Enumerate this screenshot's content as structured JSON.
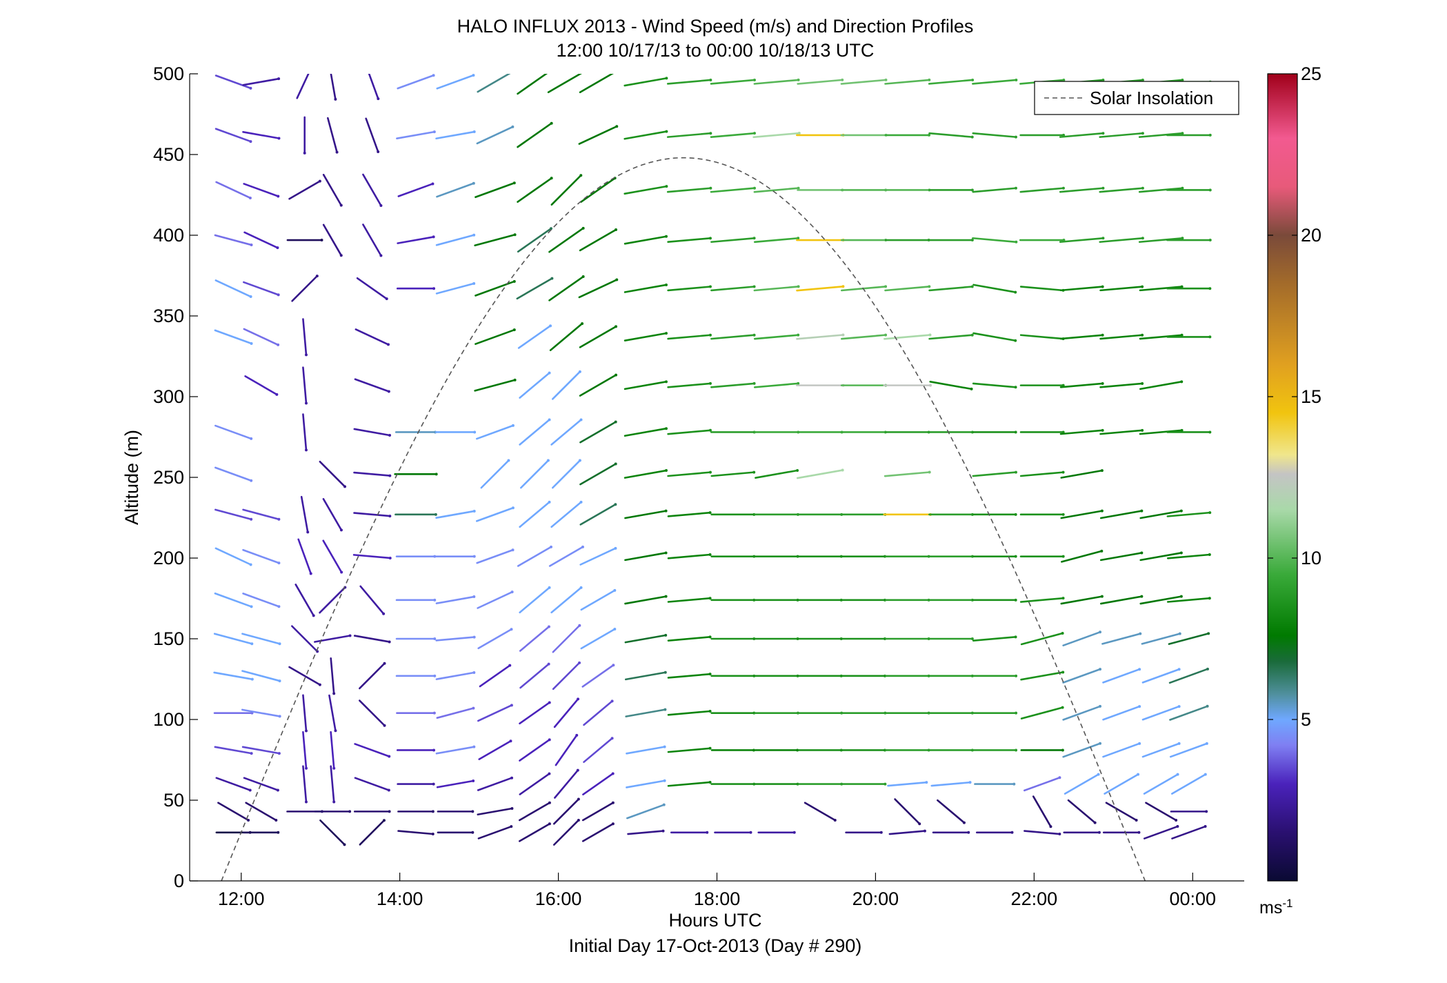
{
  "chart_data": {
    "type": "wind-barb-profile",
    "title": "HALO INFLUX 2013 - Wind Speed (m/s) and Direction Profiles",
    "subtitle": "12:00 10/17/13 to 00:00 10/18/13  UTC",
    "xlabel": "Hours UTC",
    "xlabel2": "Initial Day 17-Oct-2013 (Day # 290)",
    "ylabel": "Altitude (m)",
    "x_ticks": [
      "12:00",
      "14:00",
      "16:00",
      "18:00",
      "20:00",
      "22:00",
      "00:00"
    ],
    "x_tick_hours": [
      12,
      14,
      16,
      18,
      20,
      22,
      24
    ],
    "xlim": [
      11.35,
      24.65
    ],
    "ylim": [
      0,
      500
    ],
    "y_ticks": [
      0,
      50,
      100,
      150,
      200,
      250,
      300,
      350,
      400,
      450,
      500
    ],
    "legend": {
      "label": "Solar Insolation",
      "position": "top-right"
    },
    "colorbar": {
      "label": "ms",
      "label_exp": "-1",
      "range": [
        0,
        25
      ],
      "ticks": [
        5,
        10,
        15,
        20,
        25
      ],
      "stops": [
        {
          "v": 0,
          "c": "#0a0a33"
        },
        {
          "v": 1.5,
          "c": "#2a1070"
        },
        {
          "v": 3,
          "c": "#4a22bb"
        },
        {
          "v": 4.2,
          "c": "#7f7ff2"
        },
        {
          "v": 5,
          "c": "#6fa8ff"
        },
        {
          "v": 5.8,
          "c": "#4f8f9c"
        },
        {
          "v": 6.8,
          "c": "#1a6b3a"
        },
        {
          "v": 7.6,
          "c": "#007a00"
        },
        {
          "v": 9.5,
          "c": "#3aaa3a"
        },
        {
          "v": 11.5,
          "c": "#a9d9a9"
        },
        {
          "v": 12.6,
          "c": "#c4c4c4"
        },
        {
          "v": 13.2,
          "c": "#f0e68c"
        },
        {
          "v": 14.5,
          "c": "#f1c40f"
        },
        {
          "v": 16,
          "c": "#e0a020"
        },
        {
          "v": 18.5,
          "c": "#a36b2a"
        },
        {
          "v": 20,
          "c": "#7a4a3a"
        },
        {
          "v": 21.5,
          "c": "#e85a7a"
        },
        {
          "v": 23,
          "c": "#f25a90"
        },
        {
          "v": 25,
          "c": "#a0001a"
        }
      ]
    },
    "solar_insolation": {
      "start_hour": 11.75,
      "peak_hour": 17.58,
      "end_hour": 23.4,
      "peak_value_axis_units": 448
    },
    "profile_heights_m": [
      30,
      43,
      60,
      81,
      104,
      127,
      150,
      174,
      201,
      227,
      252,
      278,
      307,
      337,
      367,
      397,
      428,
      462,
      495
    ],
    "profiles": [
      {
        "t": 11.9,
        "s": [
          0.5,
          1.5,
          2.5,
          3.5,
          4.0,
          5.0,
          5.0,
          5.0,
          5.0,
          3.5,
          4.5,
          4.5,
          null,
          5.0,
          5.0,
          4.0,
          4.0,
          3.5,
          3.5
        ],
        "d": [
          90,
          120,
          110,
          100,
          90,
          100,
          105,
          110,
          115,
          105,
          110,
          110,
          null,
          110,
          115,
          105,
          115,
          110,
          110
        ]
      },
      {
        "t": 12.25,
        "s": [
          1,
          1.5,
          2.5,
          3.5,
          4.5,
          5.0,
          5.0,
          4.5,
          4.5,
          3.5,
          null,
          null,
          3.0,
          4.0,
          3.5,
          3.0,
          3.0,
          3.0,
          2.5
        ],
        "d": [
          90,
          120,
          110,
          100,
          100,
          105,
          105,
          110,
          110,
          105,
          null,
          null,
          120,
          115,
          110,
          115,
          110,
          100,
          80
        ]
      },
      {
        "t": 12.8,
        "s": [
          null,
          1.5,
          2.5,
          3.0,
          2.5,
          2.0,
          2.5,
          2.5,
          3.0,
          2.5,
          null,
          2.5,
          2.5,
          2.5,
          2.0,
          1.0,
          2.0,
          2.5,
          2.5
        ],
        "d": [
          null,
          90,
          175,
          175,
          175,
          120,
          135,
          150,
          160,
          170,
          null,
          175,
          175,
          175,
          45,
          90,
          60,
          180,
          25
        ]
      },
      {
        "t": 13.15,
        "s": [
          1,
          1.5,
          2.5,
          3.0,
          2.5,
          2.0,
          2.5,
          2.5,
          3.0,
          2.5,
          2.0,
          null,
          null,
          null,
          null,
          2.0,
          2.0,
          2.0,
          2.0
        ],
        "d": [
          135,
          90,
          175,
          175,
          170,
          175,
          80,
          45,
          150,
          150,
          135,
          null,
          null,
          null,
          null,
          150,
          150,
          165,
          170
        ]
      },
      {
        "t": 13.65,
        "s": [
          1,
          1.5,
          2.5,
          3.0,
          2.0,
          2.0,
          2.0,
          2.5,
          3.0,
          2.5,
          2.5,
          2.5,
          2.5,
          2.5,
          2.5,
          2.5,
          2.5,
          2.0,
          2.5
        ],
        "d": [
          45,
          90,
          110,
          110,
          135,
          45,
          100,
          140,
          95,
          95,
          95,
          100,
          110,
          115,
          125,
          150,
          150,
          160,
          160
        ]
      },
      {
        "t": 14.2,
        "s": [
          1.5,
          1.5,
          2.5,
          3.0,
          4.0,
          4.5,
          4.5,
          4.5,
          4.5,
          6.5,
          7.5,
          5.5,
          null,
          null,
          3.0,
          3.0,
          3.0,
          4.5,
          4.5
        ],
        "d": [
          95,
          90,
          90,
          90,
          90,
          90,
          90,
          90,
          90,
          90,
          90,
          90,
          null,
          null,
          90,
          80,
          70,
          80,
          70
        ]
      },
      {
        "t": 14.7,
        "s": [
          1.5,
          1.5,
          3.0,
          4.5,
          4.0,
          4.5,
          4.5,
          4.5,
          4.5,
          5.0,
          null,
          5.0,
          null,
          null,
          5.0,
          5.0,
          5.5,
          5.0,
          5.0
        ],
        "d": [
          90,
          90,
          80,
          80,
          75,
          80,
          85,
          80,
          90,
          80,
          null,
          90,
          null,
          null,
          75,
          75,
          70,
          80,
          70
        ]
      },
      {
        "t": 15.2,
        "s": [
          1.5,
          1.5,
          2.5,
          3.0,
          3.5,
          3.0,
          4.5,
          4.5,
          4.5,
          5.0,
          5.0,
          5.0,
          7.5,
          7.5,
          7.5,
          7.5,
          7.5,
          5.5,
          6.0
        ],
        "d": [
          70,
          80,
          70,
          60,
          65,
          55,
          60,
          65,
          70,
          70,
          45,
          70,
          75,
          70,
          70,
          75,
          70,
          65,
          60
        ]
      },
      {
        "t": 15.7,
        "s": [
          1.5,
          1.5,
          2.5,
          3.0,
          3.0,
          3.5,
          4.0,
          5.0,
          4.5,
          5.0,
          5.0,
          5.0,
          5.0,
          5.0,
          6.5,
          6.5,
          7.5,
          7.5,
          7.5
        ],
        "d": [
          60,
          60,
          55,
          55,
          55,
          50,
          50,
          50,
          60,
          50,
          45,
          50,
          50,
          55,
          60,
          55,
          55,
          55,
          55
        ]
      },
      {
        "t": 16.1,
        "s": [
          1.5,
          1.5,
          2.5,
          3.0,
          3.0,
          3.5,
          4.0,
          5.0,
          4.5,
          5.0,
          5.0,
          5.0,
          5.0,
          7.5,
          7.5,
          7.5,
          7.5,
          null,
          7.5
        ],
        "d": [
          45,
          45,
          40,
          35,
          40,
          45,
          45,
          50,
          60,
          50,
          45,
          50,
          45,
          50,
          55,
          55,
          45,
          null,
          60
        ]
      },
      {
        "t": 16.5,
        "s": [
          1.5,
          1.5,
          3.0,
          3.5,
          3.5,
          4.0,
          5.0,
          5.0,
          5.0,
          6.5,
          7.0,
          7.0,
          7.5,
          7.5,
          7.5,
          7.5,
          7.5,
          7.5,
          7.5
        ],
        "d": [
          60,
          60,
          55,
          50,
          50,
          55,
          60,
          60,
          65,
          60,
          60,
          60,
          60,
          60,
          65,
          60,
          55,
          65,
          60
        ]
      },
      {
        "t": 17.1,
        "s": [
          2.0,
          5.5,
          5.0,
          5.0,
          6.0,
          6.5,
          7.0,
          7.5,
          7.5,
          7.5,
          8.0,
          8.0,
          8.0,
          8.0,
          8.0,
          8.0,
          8.5,
          8.5,
          8.5
        ],
        "d": [
          85,
          70,
          80,
          80,
          80,
          80,
          80,
          80,
          80,
          80,
          80,
          80,
          80,
          80,
          80,
          80,
          80,
          80,
          80
        ]
      },
      {
        "t": 17.65,
        "s": [
          2.5,
          null,
          8.0,
          8.0,
          8.0,
          8.0,
          8.0,
          8.0,
          8.0,
          8.0,
          8.5,
          8.5,
          8.5,
          8.5,
          8.5,
          8.5,
          9.0,
          9.0,
          9.0
        ],
        "d": [
          90,
          null,
          85,
          85,
          85,
          85,
          85,
          85,
          85,
          85,
          85,
          85,
          85,
          85,
          85,
          85,
          85,
          85,
          85
        ]
      },
      {
        "t": 18.2,
        "s": [
          2.5,
          null,
          8.5,
          8.0,
          8.5,
          8.5,
          8.5,
          8.5,
          8.5,
          8.5,
          8.5,
          9.0,
          9.0,
          9.0,
          9.0,
          9.0,
          9.5,
          9.5,
          9.5
        ],
        "d": [
          90,
          null,
          90,
          90,
          90,
          90,
          90,
          90,
          90,
          90,
          85,
          90,
          85,
          85,
          85,
          85,
          85,
          85,
          85
        ]
      },
      {
        "t": 18.75,
        "s": [
          2.5,
          null,
          8.5,
          8.0,
          9.0,
          8.5,
          8.5,
          8.5,
          8.5,
          9.0,
          8.5,
          9.5,
          9.5,
          9.5,
          10.0,
          9.5,
          10.0,
          11.5,
          10.0
        ],
        "d": [
          90,
          null,
          90,
          90,
          90,
          90,
          90,
          90,
          90,
          90,
          80,
          90,
          85,
          85,
          85,
          85,
          85,
          85,
          85
        ]
      },
      {
        "t": 19.3,
        "s": [
          null,
          1.5,
          9.0,
          8.5,
          9.0,
          8.5,
          8.5,
          8.5,
          8.5,
          9.0,
          11.5,
          9.5,
          12.5,
          12.0,
          14.5,
          14.5,
          10.5,
          14.5,
          10.5
        ],
        "d": [
          null,
          120,
          90,
          90,
          90,
          90,
          90,
          90,
          90,
          90,
          80,
          90,
          90,
          85,
          85,
          90,
          90,
          90,
          85
        ]
      },
      {
        "t": 19.85,
        "s": [
          2.0,
          null,
          9.0,
          8.5,
          9.0,
          8.5,
          8.5,
          8.5,
          8.5,
          9.0,
          null,
          9.5,
          10.0,
          10.0,
          10.0,
          10.0,
          10.0,
          10.5,
          10.5
        ],
        "d": [
          90,
          null,
          90,
          90,
          90,
          90,
          90,
          90,
          90,
          90,
          null,
          90,
          90,
          85,
          85,
          90,
          90,
          90,
          85
        ]
      },
      {
        "t": 20.4,
        "s": [
          2.0,
          1.5,
          5.0,
          9.0,
          9.0,
          9.0,
          9.0,
          9.0,
          9.0,
          14.5,
          10.5,
          9.0,
          12.5,
          11.5,
          10.0,
          9.0,
          10.0,
          9.5,
          10.0
        ],
        "d": [
          85,
          135,
          85,
          90,
          90,
          90,
          90,
          90,
          90,
          90,
          85,
          90,
          90,
          85,
          85,
          90,
          90,
          90,
          85
        ]
      },
      {
        "t": 20.95,
        "s": [
          2.0,
          1.5,
          5.0,
          9.0,
          9.0,
          9.0,
          9.0,
          9.0,
          9.0,
          9.0,
          null,
          9.0,
          8.0,
          9.0,
          9.0,
          9.0,
          9.0,
          9.0,
          9.5
        ],
        "d": [
          90,
          130,
          85,
          90,
          90,
          90,
          90,
          90,
          90,
          90,
          null,
          90,
          100,
          85,
          85,
          90,
          90,
          95,
          85
        ]
      },
      {
        "t": 21.5,
        "s": [
          2.0,
          null,
          5.5,
          9.0,
          9.0,
          9.0,
          8.5,
          8.5,
          8.5,
          8.5,
          9.0,
          8.5,
          8.5,
          8.5,
          8.5,
          9.5,
          9.0,
          9.0,
          9.5
        ],
        "d": [
          90,
          null,
          90,
          90,
          90,
          90,
          85,
          90,
          90,
          90,
          85,
          90,
          95,
          100,
          100,
          95,
          85,
          95,
          85
        ]
      },
      {
        "t": 22.1,
        "s": [
          2.0,
          1.5,
          4.0,
          7.5,
          8.5,
          8.5,
          8.5,
          8.5,
          8.5,
          8.5,
          8.5,
          8.5,
          8.5,
          8.5,
          8.5,
          9.5,
          9.0,
          9.0,
          9.5
        ],
        "d": [
          95,
          150,
          70,
          90,
          75,
          80,
          75,
          85,
          90,
          90,
          85,
          90,
          90,
          95,
          95,
          90,
          85,
          90,
          85
        ]
      },
      {
        "t": 22.6,
        "s": [
          2.0,
          1.5,
          5.0,
          5.5,
          5.5,
          5.5,
          5.5,
          7.5,
          7.5,
          7.5,
          7.5,
          8.0,
          8.0,
          8.0,
          8.0,
          9.0,
          9.0,
          9.0,
          9.0
        ],
        "d": [
          90,
          130,
          60,
          70,
          70,
          70,
          70,
          80,
          75,
          80,
          80,
          85,
          85,
          85,
          85,
          85,
          85,
          85,
          85
        ]
      },
      {
        "t": 23.1,
        "s": [
          2.0,
          1.5,
          5.0,
          5.0,
          5.0,
          5.0,
          5.5,
          7.5,
          7.5,
          7.5,
          null,
          8.0,
          8.0,
          8.0,
          8.0,
          9.0,
          9.0,
          9.0,
          9.0
        ],
        "d": [
          90,
          120,
          60,
          70,
          70,
          70,
          75,
          80,
          80,
          80,
          null,
          85,
          85,
          85,
          85,
          85,
          85,
          85,
          85
        ]
      },
      {
        "t": 23.6,
        "s": [
          2.0,
          1.5,
          5.0,
          5.0,
          5.0,
          5.0,
          5.5,
          7.5,
          7.5,
          7.5,
          null,
          8.0,
          8.0,
          8.0,
          8.0,
          9.0,
          9.0,
          9.0,
          9.0
        ],
        "d": [
          70,
          120,
          60,
          70,
          70,
          70,
          75,
          80,
          80,
          80,
          null,
          85,
          80,
          85,
          85,
          85,
          85,
          85,
          85
        ]
      },
      {
        "t": 23.95,
        "s": [
          2.0,
          2.0,
          5.0,
          5.0,
          6.0,
          6.5,
          7.0,
          8.0,
          8.0,
          8.5,
          null,
          8.5,
          null,
          8.5,
          8.5,
          9.0,
          9.0,
          9.0,
          9.0
        ],
        "d": [
          70,
          90,
          60,
          70,
          70,
          70,
          75,
          85,
          85,
          85,
          null,
          90,
          null,
          90,
          90,
          90,
          90,
          90,
          90
        ]
      }
    ]
  }
}
